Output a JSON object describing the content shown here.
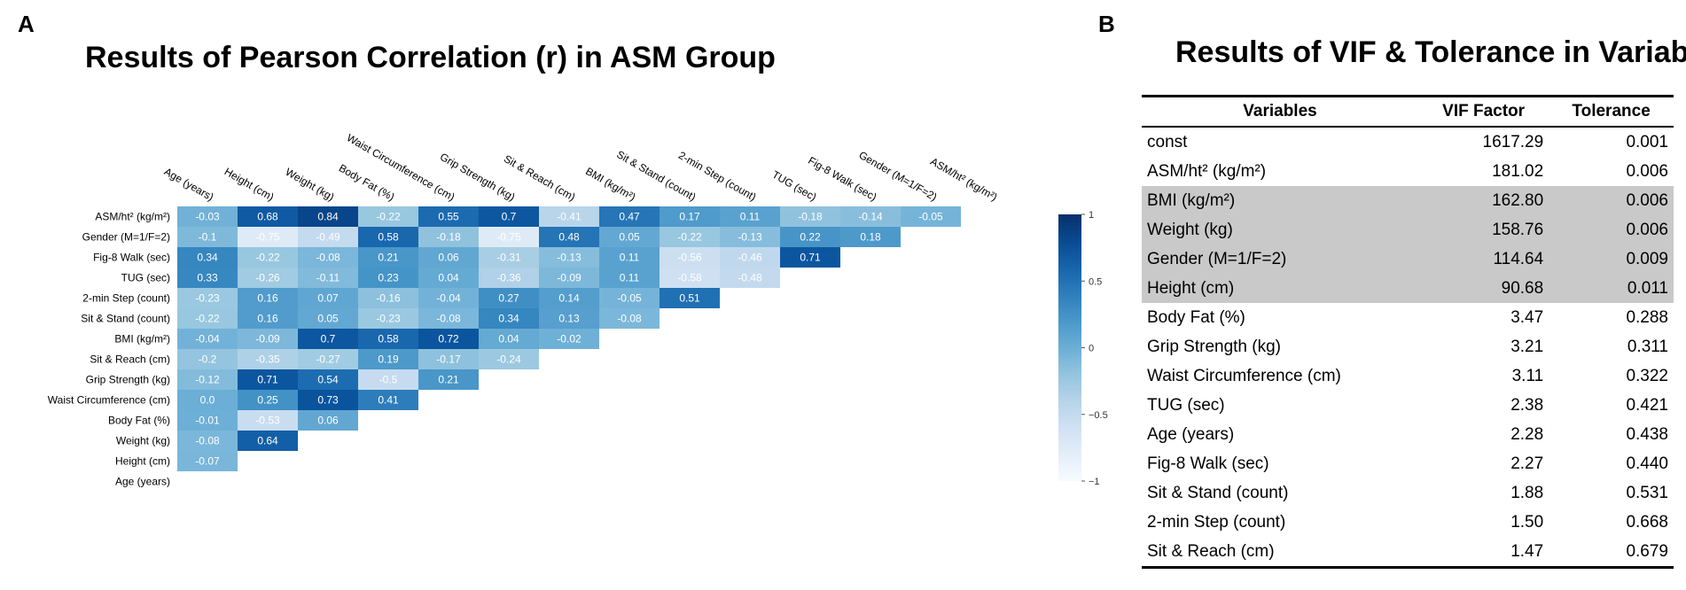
{
  "panel_a": {
    "letter": "A",
    "title": "Results of Pearson Correlation (r) in ASM Group"
  },
  "panel_b": {
    "letter": "B",
    "title": "Results of VIF & Tolerance in Variables"
  },
  "chart_data": [
    {
      "type": "heatmap",
      "title": "Results of Pearson Correlation (r) in ASM Group",
      "colormap": "Blues",
      "vmin": -1,
      "vmax": 1,
      "colorbar_ticks": [
        "1",
        "0.5",
        "0",
        "−0.5",
        "−1"
      ],
      "colorbar_tick_values": [
        1,
        0.5,
        0,
        -0.5,
        -1
      ],
      "x_labels": [
        "Age (years)",
        "Height (cm)",
        "Weight (kg)",
        "Body Fat (%)",
        "Waist Circumference (cm)",
        "Grip Strength (kg)",
        "Sit & Reach (cm)",
        "BMI (kg/m²)",
        "Sit & Stand (count)",
        "2-min Step (count)",
        "TUG (sec)",
        "Fig-8 Walk (sec)",
        "Gender (M=1/F=2)",
        "ASM/ht² (kg/m²)"
      ],
      "y_labels": [
        "ASM/ht² (kg/m²)",
        "Gender (M=1/F=2)",
        "Fig-8 Walk (sec)",
        "TUG (sec)",
        "2-min Step (count)",
        "Sit & Stand (count)",
        "BMI (kg/m²)",
        "Sit & Reach (cm)",
        "Grip Strength (kg)",
        "Waist Circumference (cm)",
        "Body Fat (%)",
        "Weight (kg)",
        "Height (cm)",
        "Age (years)"
      ],
      "values": [
        [
          "-0.03",
          "0.68",
          "0.84",
          "-0.22",
          "0.55",
          "0.7",
          "-0.41",
          "0.47",
          "0.17",
          "0.11",
          "-0.18",
          "-0.14",
          "-0.05"
        ],
        [
          "-0.1",
          "-0.75",
          "-0.49",
          "0.58",
          "-0.18",
          "-0.75",
          "0.48",
          "0.05",
          "-0.22",
          "-0.13",
          "0.22",
          "0.18"
        ],
        [
          "0.34",
          "-0.22",
          "-0.08",
          "0.21",
          "0.06",
          "-0.31",
          "-0.13",
          "0.11",
          "-0.56",
          "-0.46",
          "0.71"
        ],
        [
          "0.33",
          "-0.26",
          "-0.11",
          "0.23",
          "0.04",
          "-0.36",
          "-0.09",
          "0.11",
          "-0.58",
          "-0.48"
        ],
        [
          "-0.23",
          "0.16",
          "0.07",
          "-0.16",
          "-0.04",
          "0.27",
          "0.14",
          "-0.05",
          "0.51"
        ],
        [
          "-0.22",
          "0.16",
          "0.05",
          "-0.23",
          "-0.08",
          "0.34",
          "0.13",
          "-0.08"
        ],
        [
          "-0.04",
          "-0.09",
          "0.7",
          "0.58",
          "0.72",
          "0.04",
          "-0.02"
        ],
        [
          "-0.2",
          "-0.35",
          "-0.27",
          "0.19",
          "-0.17",
          "-0.24"
        ],
        [
          "-0.12",
          "0.71",
          "0.54",
          "-0.5",
          "0.21"
        ],
        [
          "0.0",
          "0.25",
          "0.73",
          "0.41"
        ],
        [
          "-0.01",
          "-0.53",
          "0.06"
        ],
        [
          "-0.08",
          "0.64"
        ],
        [
          "-0.07"
        ],
        []
      ]
    },
    {
      "type": "table",
      "title": "Results of VIF & Tolerance in Variables",
      "columns": [
        "Variables",
        "VIF Factor",
        "Tolerance"
      ],
      "highlight_color": "#c9c9c9",
      "rows": [
        {
          "variable": "const",
          "vif": "1617.29",
          "tolerance": "0.001",
          "highlight": false
        },
        {
          "variable": "ASM/ht² (kg/m²)",
          "vif": "181.02",
          "tolerance": "0.006",
          "highlight": false
        },
        {
          "variable": "BMI (kg/m²)",
          "vif": "162.80",
          "tolerance": "0.006",
          "highlight": true
        },
        {
          "variable": "Weight (kg)",
          "vif": "158.76",
          "tolerance": "0.006",
          "highlight": true
        },
        {
          "variable": "Gender (M=1/F=2)",
          "vif": "114.64",
          "tolerance": "0.009",
          "highlight": true
        },
        {
          "variable": "Height (cm)",
          "vif": "90.68",
          "tolerance": "0.011",
          "highlight": true
        },
        {
          "variable": "Body Fat (%)",
          "vif": "3.47",
          "tolerance": "0.288",
          "highlight": false
        },
        {
          "variable": "Grip Strength (kg)",
          "vif": "3.21",
          "tolerance": "0.311",
          "highlight": false
        },
        {
          "variable": "Waist Circumference (cm)",
          "vif": "3.11",
          "tolerance": "0.322",
          "highlight": false
        },
        {
          "variable": "TUG (sec)",
          "vif": "2.38",
          "tolerance": "0.421",
          "highlight": false
        },
        {
          "variable": "Age (years)",
          "vif": "2.28",
          "tolerance": "0.438",
          "highlight": false
        },
        {
          "variable": "Fig-8 Walk (sec)",
          "vif": "2.27",
          "tolerance": "0.440",
          "highlight": false
        },
        {
          "variable": "Sit & Stand (count)",
          "vif": "1.88",
          "tolerance": "0.531",
          "highlight": false
        },
        {
          "variable": "2-min Step (count)",
          "vif": "1.50",
          "tolerance": "0.668",
          "highlight": false
        },
        {
          "variable": "Sit & Reach (cm)",
          "vif": "1.47",
          "tolerance": "0.679",
          "highlight": false
        }
      ]
    }
  ]
}
